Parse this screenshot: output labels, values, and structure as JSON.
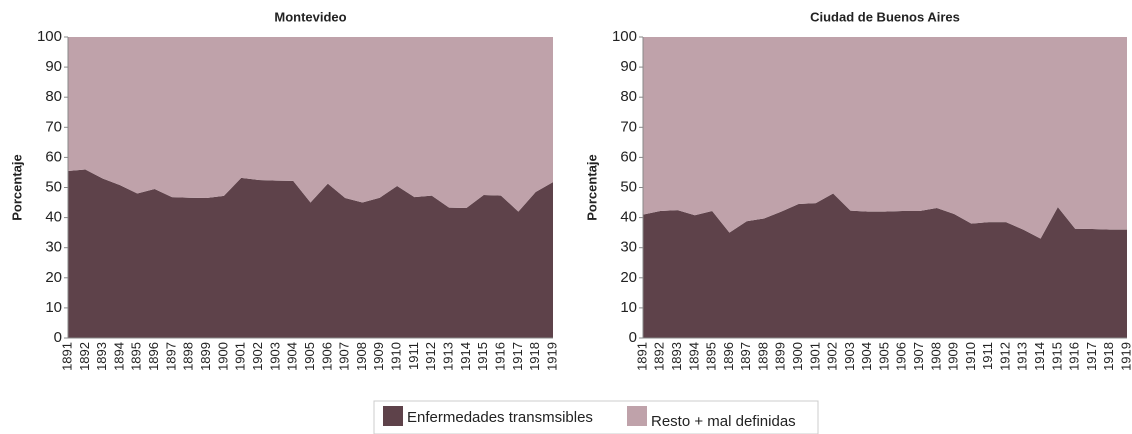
{
  "chart_data": [
    {
      "type": "area",
      "title": "Montevideo",
      "ylabel": "Porcentaje",
      "categories": [
        "1891",
        "1892",
        "1893",
        "1894",
        "1895",
        "1896",
        "1897",
        "1898",
        "1899",
        "1900",
        "1901",
        "1902",
        "1903",
        "1904",
        "1905",
        "1906",
        "1907",
        "1908",
        "1909",
        "1910",
        "1911",
        "1912",
        "1913",
        "1914",
        "1915",
        "1916",
        "1917",
        "1918",
        "1919"
      ],
      "series": [
        {
          "name": "Enfermedades transmsibles",
          "color": "#5e424a",
          "values": [
            55.5,
            56,
            53,
            50.8,
            48,
            49.5,
            46.8,
            46.6,
            46.5,
            47.2,
            53.2,
            52.5,
            52.3,
            52.2,
            45,
            51.3,
            46.5,
            45,
            46.6,
            50.5,
            46.8,
            47.3,
            43.3,
            43.2,
            47.5,
            47.3,
            42,
            48.5,
            51.8
          ]
        },
        {
          "name": "Resto + mal definidas",
          "color": "#bfa2aa",
          "values": [
            44.5,
            44,
            47,
            49.2,
            52,
            50.5,
            53.2,
            53.4,
            53.5,
            52.8,
            46.8,
            47.5,
            47.7,
            47.8,
            55,
            48.7,
            53.5,
            55,
            53.4,
            49.5,
            53.2,
            52.7,
            56.7,
            56.8,
            52.5,
            52.7,
            58,
            51.5,
            48.2
          ]
        }
      ],
      "ylim": [
        0,
        100
      ],
      "yticks": [
        0,
        10,
        20,
        30,
        40,
        50,
        60,
        70,
        80,
        90,
        100
      ],
      "stacked": true
    },
    {
      "type": "area",
      "title": "Ciudad de Buenos Aires",
      "ylabel": "Porcentaje",
      "categories": [
        "1891",
        "1892",
        "1893",
        "1894",
        "1895",
        "1896",
        "1897",
        "1898",
        "1899",
        "1900",
        "1901",
        "1902",
        "1903",
        "1904",
        "1905",
        "1906",
        "1907",
        "1908",
        "1909",
        "1910",
        "1911",
        "1912",
        "1913",
        "1914",
        "1915",
        "1916",
        "1917",
        "1918",
        "1919"
      ],
      "series": [
        {
          "name": "Enfermedades transmsibles",
          "color": "#5e424a",
          "values": [
            41,
            42.2,
            42.5,
            40.8,
            42.2,
            35,
            38.8,
            39.7,
            42,
            44.5,
            44.8,
            48,
            42.3,
            42,
            42,
            42.2,
            42.2,
            43.2,
            41.2,
            38,
            38.5,
            38.5,
            36,
            33,
            43.5,
            36.3,
            36.2,
            36,
            36
          ]
        },
        {
          "name": "Resto + mal definidas",
          "color": "#bfa2aa",
          "values": [
            59,
            57.8,
            57.5,
            59.2,
            57.8,
            65,
            61.2,
            60.3,
            58,
            55.5,
            55.2,
            52,
            57.7,
            58,
            58,
            57.8,
            57.8,
            56.8,
            58.8,
            62,
            61.5,
            61.5,
            64,
            67,
            56.5,
            63.7,
            63.8,
            64,
            64
          ]
        }
      ],
      "ylim": [
        0,
        100
      ],
      "yticks": [
        0,
        10,
        20,
        30,
        40,
        50,
        60,
        70,
        80,
        90,
        100
      ],
      "stacked": true
    }
  ]
}
